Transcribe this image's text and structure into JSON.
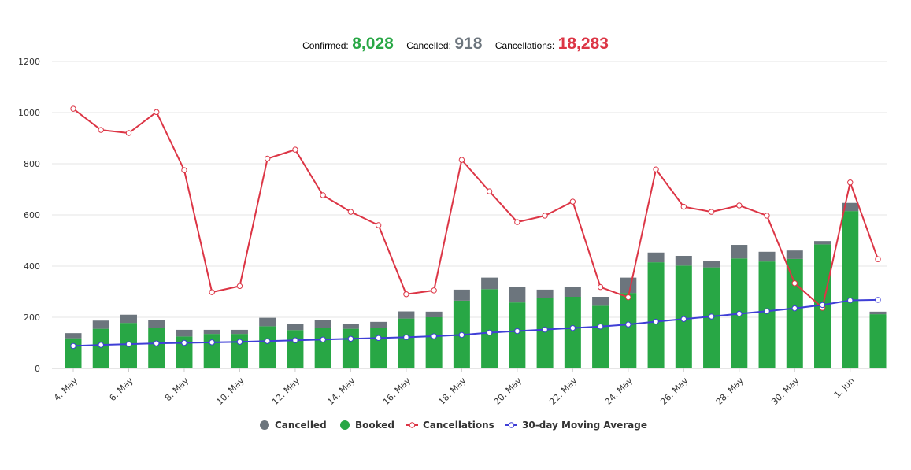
{
  "summary": {
    "confirmed_label": "Confirmed:",
    "confirmed_value": "8,028",
    "cancelled_label": "Cancelled:",
    "cancelled_value": "918",
    "cancellations_label": "Cancellations:",
    "cancellations_value": "18,283"
  },
  "colors": {
    "booked": "#28a745",
    "cancelled": "#6c757d",
    "cancellations": "#dc3545",
    "moving_average": "#3f3fd6",
    "confirmed_text": "#28a745",
    "cancelled_text": "#6c757d",
    "cancellations_text": "#dc3545"
  },
  "chart_data": {
    "type": "bar",
    "stacked": true,
    "grid": true,
    "legend_position": "bottom-center",
    "ylim": [
      0,
      1200
    ],
    "yticks": [
      0,
      200,
      400,
      600,
      800,
      1000,
      1200
    ],
    "categories": [
      "4. May",
      "5. May",
      "6. May",
      "7. May",
      "8. May",
      "9. May",
      "10. May",
      "11. May",
      "12. May",
      "13. May",
      "14. May",
      "15. May",
      "16. May",
      "17. May",
      "18. May",
      "19. May",
      "20. May",
      "21. May",
      "22. May",
      "23. May",
      "24. May",
      "25. May",
      "26. May",
      "27. May",
      "28. May",
      "29. May",
      "30. May",
      "31. May",
      "1. Jun",
      "2. Jun"
    ],
    "xtick_labels": [
      "4. May",
      "6. May",
      "8. May",
      "10. May",
      "12. May",
      "14. May",
      "16. May",
      "18. May",
      "20. May",
      "22. May",
      "24. May",
      "26. May",
      "28. May",
      "30. May",
      "1. Jun"
    ],
    "series": [
      {
        "name": "Booked",
        "kind": "bar",
        "values": [
          118,
          155,
          178,
          160,
          125,
          135,
          135,
          165,
          150,
          160,
          155,
          160,
          195,
          200,
          265,
          310,
          258,
          275,
          280,
          245,
          295,
          415,
          402,
          395,
          430,
          418,
          428,
          485,
          615,
          212
        ]
      },
      {
        "name": "Cancelled",
        "kind": "bar",
        "values": [
          20,
          32,
          32,
          30,
          26,
          16,
          16,
          33,
          23,
          30,
          20,
          22,
          28,
          22,
          43,
          45,
          60,
          33,
          37,
          35,
          60,
          38,
          38,
          25,
          53,
          38,
          33,
          13,
          32,
          10
        ]
      },
      {
        "name": "Cancellations",
        "kind": "line",
        "values": [
          1015,
          932,
          920,
          1002,
          775,
          298,
          322,
          820,
          855,
          677,
          612,
          560,
          290,
          305,
          815,
          692,
          572,
          597,
          652,
          318,
          278,
          778,
          632,
          612,
          637,
          597,
          333,
          237,
          727,
          427
        ]
      },
      {
        "name": "30-day Moving Average",
        "kind": "line",
        "values": [
          88,
          92,
          95,
          98,
          100,
          102,
          104,
          107,
          110,
          113,
          116,
          119,
          122,
          126,
          131,
          140,
          146,
          152,
          158,
          164,
          172,
          183,
          193,
          203,
          214,
          224,
          235,
          248,
          266,
          268
        ]
      }
    ]
  },
  "legend": [
    {
      "label": "Cancelled"
    },
    {
      "label": "Booked"
    },
    {
      "label": "Cancellations"
    },
    {
      "label": "30-day Moving Average"
    }
  ]
}
